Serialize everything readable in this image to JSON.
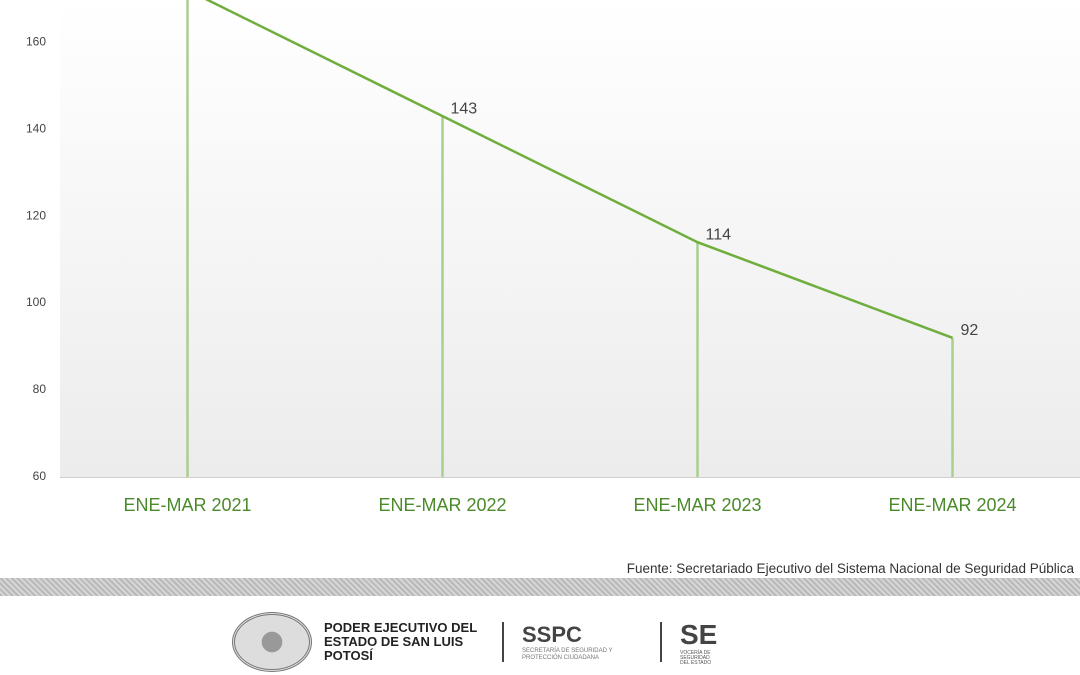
{
  "chart_data": {
    "type": "line",
    "categories": [
      "ENE-MAR 2021",
      "ENE-MAR 2022",
      "ENE-MAR 2023",
      "ENE-MAR 2024"
    ],
    "values": [
      172,
      143,
      114,
      92
    ],
    "color": "#6fae3c",
    "ylim": [
      60,
      169.7
    ],
    "yticks": [
      60,
      80,
      100,
      120,
      140,
      160
    ],
    "grid": false,
    "source": "Fuente: Secretariado Ejecutivo del Sistema Nacional de Seguridad Pública"
  },
  "footer": {
    "poder": "PODER EJECUTIVO DEL ESTADO DE SAN LUIS POTOSÍ",
    "sspc": "SSPC",
    "sspc_sub": "SECRETARÍA DE SEGURIDAD Y PROTECCIÓN CIUDADANA",
    "se": "SE",
    "se_sub": "VOCERÍA DE SEGURIDAD DEL ESTADO"
  }
}
